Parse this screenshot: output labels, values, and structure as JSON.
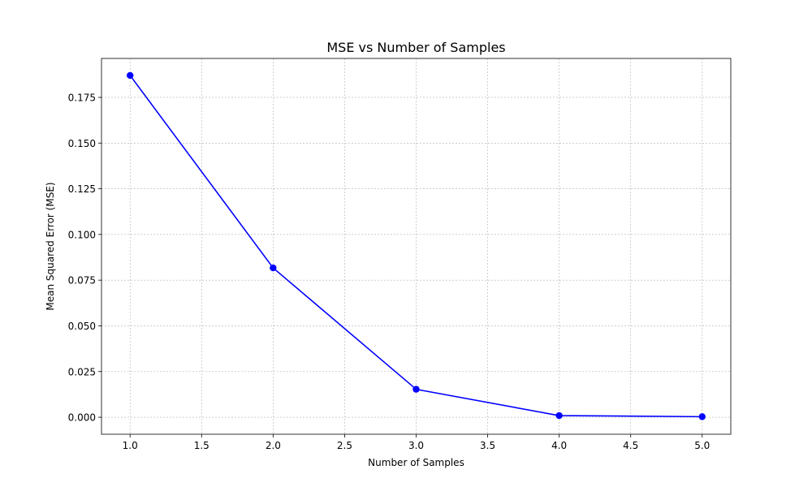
{
  "chart_data": {
    "type": "line",
    "title": "MSE vs Number of Samples",
    "xlabel": "Number of Samples",
    "ylabel": "Mean Squared Error (MSE)",
    "xlim": [
      0.8,
      5.2
    ],
    "ylim": [
      -0.0093,
      0.1963
    ],
    "grid": true,
    "x_ticks": [
      1.0,
      1.5,
      2.0,
      2.5,
      3.0,
      3.5,
      4.0,
      4.5,
      5.0
    ],
    "x_tick_labels": [
      "1.0",
      "1.5",
      "2.0",
      "2.5",
      "3.0",
      "3.5",
      "4.0",
      "4.5",
      "5.0"
    ],
    "y_ticks": [
      0.0,
      0.025,
      0.05,
      0.075,
      0.1,
      0.125,
      0.15,
      0.175
    ],
    "y_tick_labels": [
      "0.000",
      "0.025",
      "0.050",
      "0.075",
      "0.100",
      "0.125",
      "0.150",
      "0.175"
    ],
    "series": [
      {
        "name": "MSE",
        "color": "#0000ff",
        "marker": "circle",
        "x": [
          1,
          2,
          3,
          4,
          5
        ],
        "values": [
          0.187,
          0.0817,
          0.0153,
          0.0009,
          0.0003
        ]
      }
    ]
  }
}
